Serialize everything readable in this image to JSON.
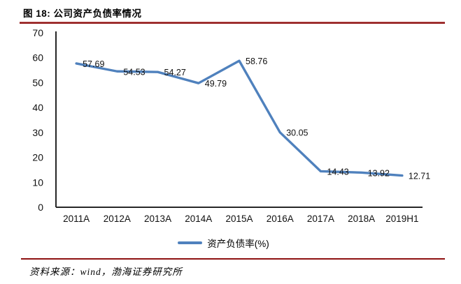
{
  "header": {
    "title": "图 18: 公司资产负债率情况"
  },
  "chart_data": {
    "type": "line",
    "categories": [
      "2011A",
      "2012A",
      "2013A",
      "2014A",
      "2015A",
      "2016A",
      "2017A",
      "2018A",
      "2019H1"
    ],
    "series": [
      {
        "name": "资产负债率(%)",
        "values": [
          57.69,
          54.53,
          54.27,
          49.79,
          58.76,
          30.05,
          14.43,
          13.92,
          12.71
        ]
      }
    ],
    "ylim": [
      0,
      70
    ],
    "yticks": [
      0,
      10,
      20,
      30,
      40,
      50,
      60,
      70
    ],
    "grid": false,
    "legend_position": "bottom",
    "data_labels": true,
    "line_color": "#4F81BD"
  },
  "legend": {
    "items": [
      {
        "label": "资产负债率(%)",
        "color": "#4F81BD"
      }
    ]
  },
  "footer": {
    "source_text": "资料来源：wind，渤海证券研究所"
  },
  "colors": {
    "rule_red": "#8e1111",
    "line_blue": "#4F81BD",
    "axis": "#262626"
  }
}
